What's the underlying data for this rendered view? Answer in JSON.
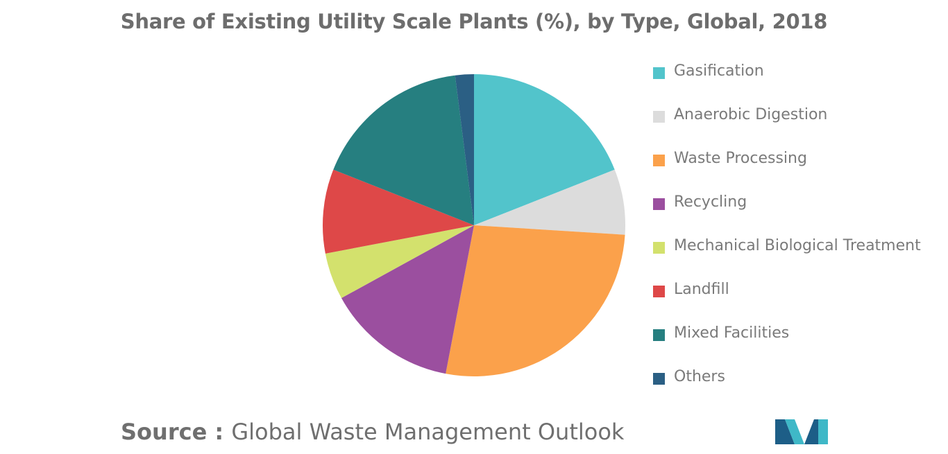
{
  "chart_data": {
    "type": "pie",
    "title": "Share of Existing Utility Scale Plants (%), by Type, Global, 2018",
    "start_angle_deg": 0,
    "direction": "clockwise",
    "legend_position": "right",
    "slices": [
      {
        "label": "Gasification",
        "value": 19,
        "color": "#52c4cb"
      },
      {
        "label": "Anaerobic Digestion",
        "value": 7,
        "color": "#dcdcdc"
      },
      {
        "label": "Waste Processing",
        "value": 27,
        "color": "#fba14b"
      },
      {
        "label": "Recycling",
        "value": 14,
        "color": "#9b4f9f"
      },
      {
        "label": "Mechanical Biological Treatment",
        "value": 5,
        "color": "#d3e16d"
      },
      {
        "label": "Landfill",
        "value": 9,
        "color": "#de4848"
      },
      {
        "label": "Mixed Facilities",
        "value": 17,
        "color": "#267f80"
      },
      {
        "label": "Others",
        "value": 2,
        "color": "#2b5f84"
      }
    ]
  },
  "footer": {
    "source_prefix": "Source : ",
    "source_text": "Global Waste Management Outlook"
  },
  "logo": {
    "icon": "mordor-intelligence-logo",
    "colors": [
      "#1d5e87",
      "#3fb8c7"
    ]
  }
}
